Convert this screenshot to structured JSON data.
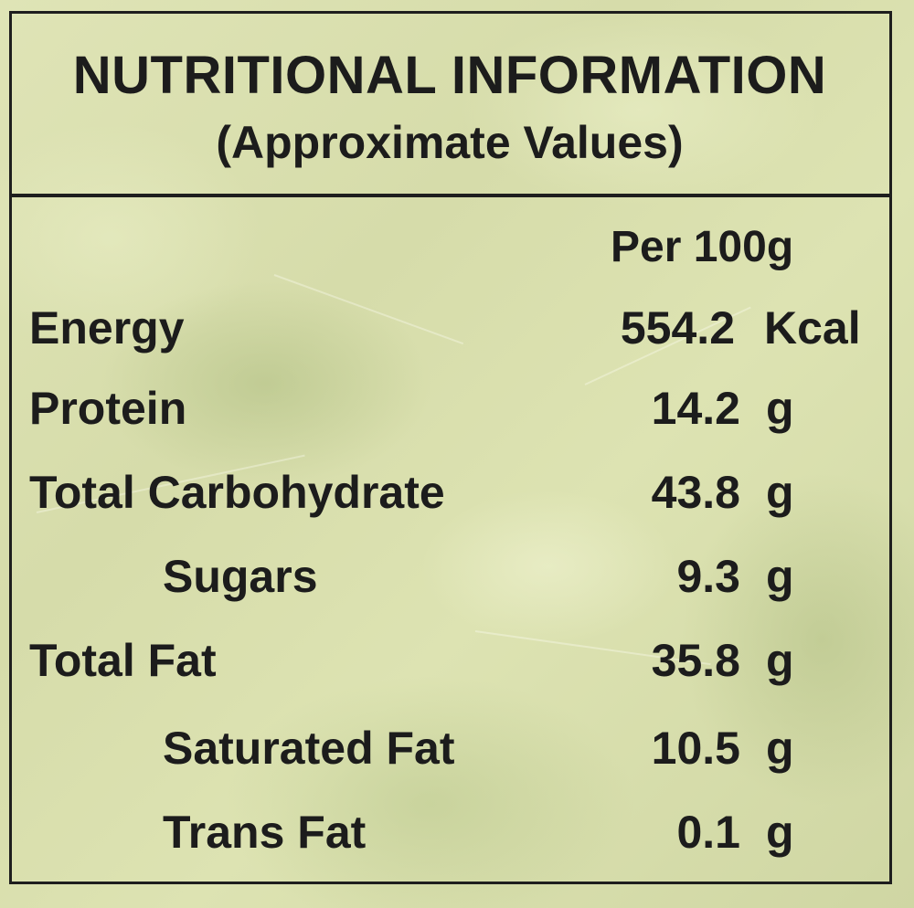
{
  "label": {
    "title": "NUTRITIONAL INFORMATION",
    "subtitle": "(Approximate Values)",
    "column_header": "Per 100g",
    "rows": [
      {
        "name": "Energy",
        "value": "554.2",
        "unit": "Kcal",
        "indent": false
      },
      {
        "name": "Protein",
        "value": "14.2",
        "unit": "g",
        "indent": false
      },
      {
        "name": "Total Carbohydrate",
        "value": "43.8",
        "unit": "g",
        "indent": false
      },
      {
        "name": "Sugars",
        "value": "9.3",
        "unit": "g",
        "indent": true
      },
      {
        "name": "Total Fat",
        "value": "35.8",
        "unit": "g",
        "indent": false
      },
      {
        "name": "Saturated Fat",
        "value": "10.5",
        "unit": "g",
        "indent": true
      },
      {
        "name": "Trans Fat",
        "value": "0.1",
        "unit": "g",
        "indent": true
      }
    ]
  }
}
